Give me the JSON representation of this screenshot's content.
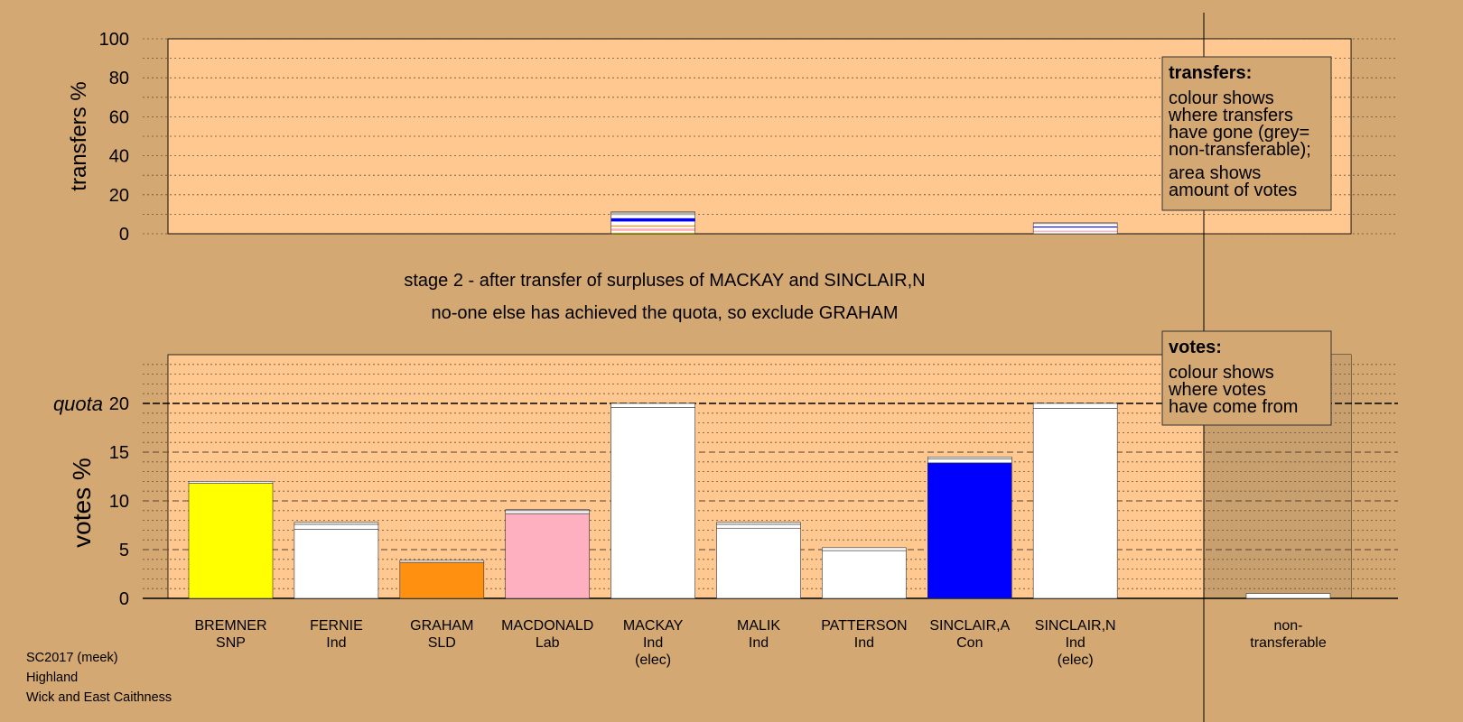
{
  "stage_text": {
    "line1": "stage 2 - after transfer of surpluses of MACKAY and SINCLAIR,N",
    "line2": "no-one else has achieved the quota, so exclude GRAHAM"
  },
  "footer": {
    "election": "SC2017 (meek)",
    "council": "Highland",
    "ward": "Wick and East Caithness"
  },
  "colors": {
    "background": "#d4a873",
    "plot_bg": "#ffc890",
    "nontransferable_bg": "#c89f6e",
    "SNP": "#ffff00",
    "Ind": "#ffffff",
    "SLD": "#ff9010",
    "Lab": "#ffb0c0",
    "Con": "#0000ff"
  },
  "chart_data": [
    {
      "type": "bar",
      "id": "transfers",
      "ylabel": "transfers %",
      "ylim": [
        0,
        100
      ],
      "yticks": [
        0,
        20,
        40,
        60,
        80,
        100
      ],
      "grid": "dotted",
      "legend": {
        "title": "transfers:",
        "lines1": [
          "colour shows",
          "where transfers",
          "have gone (grey=",
          "non-transferable);"
        ],
        "lines2": [
          "area shows",
          "amount of votes"
        ]
      },
      "stacks": [
        {
          "column": "MACKAY",
          "segments": [
            {
              "color": "#d0d000",
              "value": 0.6
            },
            {
              "color": "#ffffff",
              "value": 0.9
            },
            {
              "color": "#ffb0c0",
              "value": 1.2
            },
            {
              "color": "#ffffff",
              "value": 1.0
            },
            {
              "color": "#ff9010",
              "value": 0.6
            },
            {
              "color": "#ffffff",
              "value": 2.0
            },
            {
              "color": "#0000ff",
              "value": 1.7
            },
            {
              "color": "#ffffff",
              "value": 1.6
            },
            {
              "color": "#b0b0b0",
              "value": 1.6
            }
          ]
        },
        {
          "column": "SINCLAIR,N",
          "segments": [
            {
              "color": "#ffffff",
              "value": 1.0
            },
            {
              "color": "#ffb0c0",
              "value": 0.6
            },
            {
              "color": "#ffffff",
              "value": 1.6
            },
            {
              "color": "#0000ff",
              "value": 0.5
            },
            {
              "color": "#ffffff",
              "value": 1.3
            },
            {
              "color": "#b0b0b0",
              "value": 0.6
            }
          ]
        }
      ]
    },
    {
      "type": "bar",
      "id": "votes",
      "ylabel": "votes %",
      "quota_label": "quota",
      "quota": 20,
      "yticks": [
        0,
        5,
        10,
        15,
        20
      ],
      "ylim": [
        0,
        25
      ],
      "grid": "dotted",
      "legend": {
        "title": "votes:",
        "lines1": [
          "colour shows",
          "where votes",
          "have come from"
        ]
      },
      "candidates": [
        {
          "name": "BREMNER",
          "party": "SNP",
          "extra": "",
          "color": "#ffff00",
          "base": 11.8,
          "transfers": [
            0.2
          ]
        },
        {
          "name": "FERNIE",
          "party": "Ind",
          "extra": "",
          "color": "#ffffff",
          "base": 7.1,
          "transfers": [
            0.5,
            0.2
          ]
        },
        {
          "name": "GRAHAM",
          "party": "SLD",
          "extra": "",
          "color": "#ff9010",
          "base": 3.7,
          "transfers": [
            0.2
          ]
        },
        {
          "name": "MACDONALD",
          "party": "Lab",
          "extra": "",
          "color": "#ffb0c0",
          "base": 8.7,
          "transfers": [
            0.3,
            0.1
          ]
        },
        {
          "name": "MACKAY",
          "party": "Ind",
          "extra": "(elec)",
          "color": "#ffffff",
          "base": 19.6,
          "transfers": [
            0.4
          ]
        },
        {
          "name": "MALIK",
          "party": "Ind",
          "extra": "",
          "color": "#ffffff",
          "base": 7.2,
          "transfers": [
            0.4,
            0.2
          ]
        },
        {
          "name": "PATTERSON",
          "party": "Ind",
          "extra": "",
          "color": "#ffffff",
          "base": 4.9,
          "transfers": [
            0.3
          ]
        },
        {
          "name": "SINCLAIR,A",
          "party": "Con",
          "extra": "",
          "color": "#0000ff",
          "base": 13.9,
          "transfers": [
            0.4,
            0.2
          ]
        },
        {
          "name": "SINCLAIR,N",
          "party": "Ind",
          "extra": "(elec)",
          "color": "#ffffff",
          "base": 19.5,
          "transfers": [
            0.5
          ]
        }
      ],
      "nontransferable": {
        "label1": "non-",
        "label2": "transferable",
        "value": 0.5
      }
    }
  ]
}
